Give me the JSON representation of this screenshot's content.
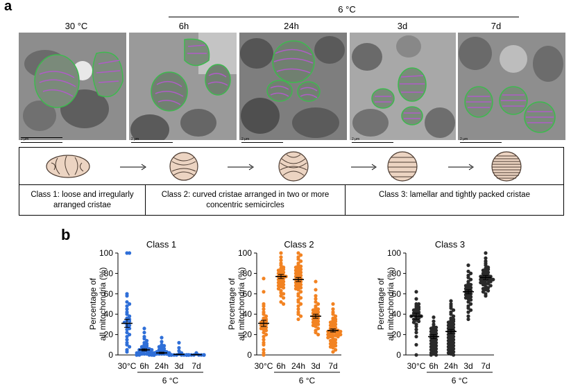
{
  "panel_a": {
    "label": "a",
    "group_label": "6 °C",
    "headers": [
      "30 °C",
      "6h",
      "24h",
      "3d",
      "7d"
    ],
    "scale_label": "2 μm",
    "classes": [
      {
        "text": "Class 1: loose and irregularly arranged cristae"
      },
      {
        "text": "Class 2: curved cristae arranged in two or more concentric semicircles"
      },
      {
        "text": "Class 3: lamellar and tightly packed cristae"
      }
    ],
    "colors": {
      "outline": "#3dba4e",
      "cristae": "#b05cc8",
      "schematic_fill": "#ecd4c2",
      "schematic_stroke": "#4a3a30"
    }
  },
  "panel_b": {
    "label": "b",
    "group_label": "6 °C",
    "ylabel": "Percentage of all mitochondria (%)"
  },
  "chart_data": [
    {
      "type": "scatter",
      "title": "Class 1",
      "categories": [
        "30°C",
        "6h",
        "24h",
        "3d",
        "7d"
      ],
      "ylabel": "Percentage of all mitochondria (%)",
      "ylim": [
        0,
        100
      ],
      "yticks": [
        0,
        20,
        40,
        60,
        80,
        100
      ],
      "color": "#2f6fd8",
      "means": [
        31,
        5,
        2,
        0.5,
        0.3
      ],
      "sems": [
        4,
        1,
        0.7,
        0.3,
        0.2
      ],
      "points": [
        [
          100,
          100,
          60,
          58,
          52,
          50,
          48,
          45,
          42,
          40,
          38,
          36,
          35,
          34,
          33,
          32,
          30,
          29,
          28,
          26,
          25,
          22,
          20,
          18,
          15,
          12,
          10,
          8,
          5,
          3
        ],
        [
          26,
          22,
          18,
          16,
          14,
          12,
          11,
          10,
          9,
          8,
          7,
          7,
          6,
          6,
          5,
          5,
          4,
          4,
          3,
          3,
          3,
          2,
          2,
          2,
          1,
          1,
          1,
          0,
          0,
          0,
          0,
          0,
          0,
          0,
          0
        ],
        [
          17,
          13,
          10,
          9,
          8,
          7,
          6,
          5,
          4,
          4,
          3,
          3,
          3,
          2,
          2,
          2,
          2,
          1,
          1,
          1,
          1,
          1,
          0,
          0,
          0,
          0,
          0,
          0,
          0,
          0,
          0,
          0,
          0,
          0,
          0,
          0,
          0,
          0,
          0,
          0
        ],
        [
          12,
          7,
          4,
          2,
          1,
          0,
          0,
          0,
          0,
          0,
          0,
          0,
          0,
          0,
          0,
          0,
          0,
          0,
          0,
          0,
          0,
          0
        ],
        [
          2,
          1,
          0,
          0,
          0,
          0,
          0,
          0,
          0,
          0,
          0,
          0,
          0,
          0,
          0,
          0,
          0,
          0
        ]
      ]
    },
    {
      "type": "scatter",
      "title": "Class 2",
      "categories": [
        "30°C",
        "6h",
        "24h",
        "3d",
        "7d"
      ],
      "ylabel": "Percentage of all mitochondria (%)",
      "ylim": [
        0,
        100
      ],
      "yticks": [
        0,
        20,
        40,
        60,
        80,
        100
      ],
      "color": "#f28322",
      "means": [
        31,
        77,
        74,
        38,
        24
      ],
      "sems": [
        3,
        2,
        2,
        2,
        1.5
      ],
      "points": [
        [
          75,
          62,
          50,
          48,
          45,
          42,
          40,
          38,
          36,
          35,
          34,
          33,
          32,
          31,
          30,
          29,
          28,
          27,
          26,
          25,
          24,
          22,
          20,
          18,
          15,
          12,
          10,
          5,
          2,
          0
        ],
        [
          100,
          96,
          93,
          90,
          88,
          86,
          85,
          84,
          83,
          82,
          81,
          80,
          79,
          78,
          77,
          77,
          76,
          75,
          74,
          73,
          72,
          71,
          70,
          69,
          68,
          67,
          66,
          65,
          63,
          61,
          60,
          58,
          56,
          52,
          50
        ],
        [
          100,
          98,
          96,
          94,
          92,
          90,
          88,
          87,
          86,
          85,
          84,
          83,
          82,
          81,
          80,
          79,
          78,
          77,
          76,
          75,
          74,
          73,
          72,
          71,
          70,
          69,
          68,
          67,
          66,
          65,
          64,
          62,
          60,
          58,
          56,
          54,
          52,
          50,
          48,
          45,
          42,
          40,
          38,
          35
        ],
        [
          72,
          64,
          58,
          55,
          52,
          50,
          48,
          46,
          45,
          44,
          43,
          42,
          41,
          40,
          39,
          38,
          37,
          36,
          35,
          34,
          33,
          32,
          31,
          30,
          29,
          28,
          26,
          24,
          22,
          20
        ],
        [
          50,
          45,
          42,
          40,
          38,
          36,
          35,
          34,
          33,
          32,
          31,
          30,
          29,
          28,
          27,
          26,
          25,
          25,
          24,
          24,
          23,
          23,
          22,
          22,
          21,
          21,
          20,
          20,
          19,
          19,
          18,
          18,
          17,
          16,
          15,
          14,
          13,
          12,
          11,
          10,
          9,
          8,
          7,
          5,
          3
        ]
      ]
    },
    {
      "type": "scatter",
      "title": "Class 3",
      "categories": [
        "30°C",
        "6h",
        "24h",
        "3d",
        "7d"
      ],
      "ylabel": "Percentage of all mitochondria (%)",
      "ylim": [
        0,
        100
      ],
      "yticks": [
        0,
        20,
        40,
        60,
        80,
        100
      ],
      "color": "#2a2a2a",
      "means": [
        38,
        18,
        23,
        62,
        76
      ],
      "sems": [
        3,
        2,
        2,
        2,
        2
      ],
      "points": [
        [
          62,
          55,
          50,
          50,
          48,
          47,
          46,
          45,
          44,
          43,
          42,
          41,
          40,
          40,
          39,
          38,
          38,
          37,
          36,
          35,
          34,
          33,
          32,
          30,
          28,
          25,
          22,
          18,
          10,
          0
        ],
        [
          37,
          33,
          30,
          28,
          27,
          26,
          25,
          24,
          23,
          22,
          21,
          20,
          19,
          18,
          17,
          16,
          15,
          14,
          13,
          12,
          11,
          10,
          9,
          8,
          7,
          6,
          5,
          4,
          3,
          2,
          1,
          0,
          0
        ],
        [
          53,
          50,
          48,
          46,
          44,
          42,
          40,
          38,
          36,
          35,
          34,
          33,
          32,
          31,
          30,
          29,
          28,
          27,
          26,
          25,
          24,
          23,
          22,
          21,
          20,
          19,
          18,
          17,
          16,
          15,
          14,
          13,
          12,
          11,
          10,
          9,
          8,
          7,
          6,
          5,
          4,
          3,
          2,
          1,
          0
        ],
        [
          88,
          82,
          80,
          78,
          76,
          74,
          72,
          70,
          69,
          68,
          67,
          66,
          65,
          64,
          63,
          62,
          61,
          60,
          59,
          58,
          57,
          56,
          55,
          54,
          52,
          50,
          48,
          46,
          44,
          42,
          38,
          35
        ],
        [
          100,
          95,
          92,
          90,
          88,
          86,
          85,
          84,
          83,
          82,
          81,
          80,
          79,
          78,
          78,
          77,
          77,
          76,
          76,
          75,
          75,
          74,
          74,
          73,
          73,
          72,
          72,
          71,
          70,
          70,
          69,
          68,
          67,
          66,
          65,
          64,
          63,
          62,
          60,
          58
        ]
      ]
    }
  ]
}
